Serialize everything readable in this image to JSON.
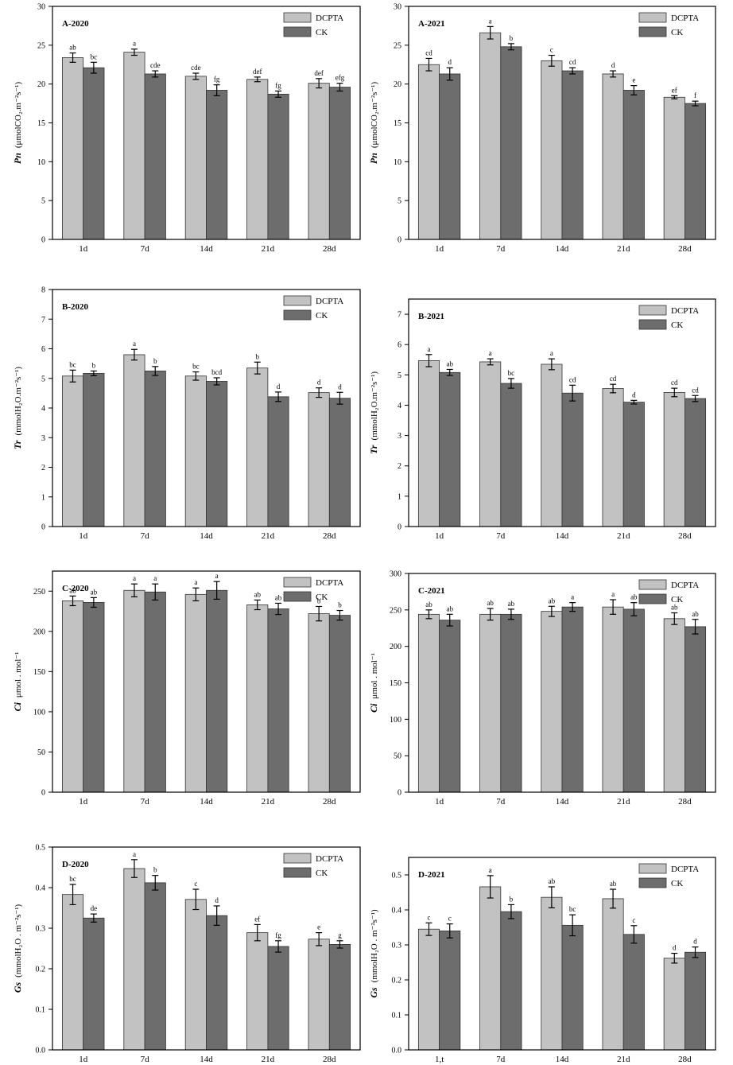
{
  "colors": {
    "dcpta": "#c2c2c2",
    "ck": "#6d6d6d",
    "axis": "#000000"
  },
  "chart_data": [
    {
      "type": "bar",
      "title": "A-2020",
      "ylabel": {
        "symbol": "Pn",
        "unit": "(μmolCO₂.m⁻²s⁻¹)"
      },
      "categories": [
        "1d",
        "7d",
        "14d",
        "21d",
        "28d"
      ],
      "ylim": [
        0,
        30
      ],
      "yticks": [
        "0",
        "5",
        "10",
        "15",
        "20",
        "25",
        "30"
      ],
      "legend": [
        "DCPTA",
        "CK"
      ],
      "legend_position": "top-right",
      "series": [
        {
          "name": "DCPTA",
          "values": [
            23.4,
            24.1,
            21.0,
            20.6,
            20.1
          ],
          "errors": [
            0.6,
            0.4,
            0.4,
            0.3,
            0.6
          ],
          "letters": [
            "ab",
            "a",
            "cde",
            "def",
            "def"
          ]
        },
        {
          "name": "CK",
          "values": [
            22.1,
            21.3,
            19.2,
            18.7,
            19.6
          ],
          "errors": [
            0.7,
            0.4,
            0.7,
            0.4,
            0.5
          ],
          "letters": [
            "bc",
            "cde",
            "fg",
            "fg",
            "efg"
          ]
        }
      ]
    },
    {
      "type": "bar",
      "title": "A-2021",
      "ylabel": {
        "symbol": "Pn",
        "unit": "(μmolCO₂.m⁻²s⁻¹)"
      },
      "categories": [
        "1d",
        "7d",
        "14d",
        "21d",
        "28d"
      ],
      "ylim": [
        0,
        30
      ],
      "yticks": [
        "0",
        "5",
        "10",
        "15",
        "20",
        "25",
        "30"
      ],
      "legend": [
        "DCPTA",
        "CK"
      ],
      "legend_position": "top-right",
      "series": [
        {
          "name": "DCPTA",
          "values": [
            22.5,
            26.6,
            23.0,
            21.3,
            18.3
          ],
          "errors": [
            0.8,
            0.8,
            0.7,
            0.4,
            0.2
          ],
          "letters": [
            "cd",
            "a",
            "c",
            "d",
            "ef"
          ]
        },
        {
          "name": "CK",
          "values": [
            21.3,
            24.8,
            21.7,
            19.2,
            17.5
          ],
          "errors": [
            0.8,
            0.4,
            0.4,
            0.6,
            0.3
          ],
          "letters": [
            "d",
            "b",
            "cd",
            "e",
            "f"
          ]
        }
      ]
    },
    {
      "type": "bar",
      "title": "B-2020",
      "ylabel": {
        "symbol": "Tr",
        "unit": "(mmolH₂O.m⁻²s⁻¹)"
      },
      "categories": [
        "1d",
        "7d",
        "14d",
        "21d",
        "28d"
      ],
      "ylim": [
        0,
        8
      ],
      "yticks": [
        "0",
        "1",
        "2",
        "3",
        "4",
        "5",
        "6",
        "7",
        "8"
      ],
      "legend": [
        "DCPTA",
        "CK"
      ],
      "legend_position": "top-right",
      "series": [
        {
          "name": "DCPTA",
          "values": [
            5.08,
            5.8,
            5.08,
            5.35,
            4.52
          ],
          "errors": [
            0.2,
            0.18,
            0.14,
            0.2,
            0.16
          ],
          "letters": [
            "bc",
            "a",
            "bc",
            "b",
            "d"
          ]
        },
        {
          "name": "CK",
          "values": [
            5.17,
            5.25,
            4.9,
            4.38,
            4.33
          ],
          "errors": [
            0.08,
            0.15,
            0.12,
            0.16,
            0.2
          ],
          "letters": [
            "b",
            "b",
            "bcd",
            "d",
            "d"
          ]
        }
      ]
    },
    {
      "type": "bar",
      "title": "B-2021",
      "ylabel": {
        "symbol": "Tr",
        "unit": "(mmolH₂O.m⁻²s⁻¹)"
      },
      "categories": [
        "1d",
        "7d",
        "14d",
        "21d",
        "28d"
      ],
      "ylim": [
        0,
        7.5
      ],
      "yticks": [
        "0",
        "1",
        "2",
        "3",
        "4",
        "5",
        "6",
        "7"
      ],
      "legend": [
        "DCPTA",
        "CK"
      ],
      "legend_position": "top-right",
      "series": [
        {
          "name": "DCPTA",
          "values": [
            5.47,
            5.43,
            5.35,
            4.55,
            4.42
          ],
          "errors": [
            0.2,
            0.1,
            0.18,
            0.14,
            0.14
          ],
          "letters": [
            "a",
            "a",
            "a",
            "cd",
            "cd"
          ]
        },
        {
          "name": "CK",
          "values": [
            5.08,
            4.72,
            4.4,
            4.1,
            4.22
          ],
          "errors": [
            0.1,
            0.16,
            0.26,
            0.06,
            0.1
          ],
          "letters": [
            "ab",
            "bc",
            "cd",
            "d",
            "cd"
          ]
        }
      ]
    },
    {
      "type": "bar",
      "title": "C-2020",
      "ylabel": {
        "symbol": "Ci",
        "unit": "μmol . mol⁻¹"
      },
      "categories": [
        "1d",
        "7d",
        "14d",
        "21d",
        "28d"
      ],
      "ylim": [
        0,
        275
      ],
      "yticks": [
        "0",
        "50",
        "100",
        "150",
        "200",
        "250"
      ],
      "legend": [
        "DCPTA",
        "CK"
      ],
      "legend_position": "top-right",
      "series": [
        {
          "name": "DCPTA",
          "values": [
            238,
            251,
            246,
            233,
            222
          ],
          "errors": [
            6,
            8,
            8,
            6,
            9
          ],
          "letters": [
            "ab",
            "a",
            "a",
            "ab",
            "b"
          ]
        },
        {
          "name": "CK",
          "values": [
            236,
            249,
            251,
            228,
            220
          ],
          "errors": [
            6,
            10,
            11,
            7,
            6
          ],
          "letters": [
            "ab",
            "a",
            "a",
            "ab",
            "b"
          ]
        }
      ]
    },
    {
      "type": "bar",
      "title": "C-2021",
      "ylabel": {
        "symbol": "Ci",
        "unit": "μmol . mol⁻¹"
      },
      "categories": [
        "1d",
        "7d",
        "14d",
        "21d",
        "28d"
      ],
      "ylim": [
        0,
        300
      ],
      "yticks": [
        "0",
        "50",
        "100",
        "150",
        "200",
        "250",
        "300"
      ],
      "legend": [
        "DCPTA",
        "CK"
      ],
      "legend_position": "top-right",
      "series": [
        {
          "name": "DCPTA",
          "values": [
            244,
            244,
            248,
            254,
            238
          ],
          "errors": [
            6,
            8,
            7,
            10,
            8
          ],
          "letters": [
            "ab",
            "ab",
            "ab",
            "a",
            "ab"
          ]
        },
        {
          "name": "CK",
          "values": [
            236,
            244,
            254,
            251,
            227
          ],
          "errors": [
            8,
            7,
            6,
            9,
            10
          ],
          "letters": [
            "ab",
            "ab",
            "a",
            "ab",
            "ab"
          ]
        }
      ]
    },
    {
      "type": "bar",
      "title": "D-2020",
      "ylabel": {
        "symbol": "Gs",
        "unit": "(mmolH₂O . m⁻²s⁻¹)"
      },
      "categories": [
        "1d",
        "7d",
        "14d",
        "21d",
        "28d"
      ],
      "ylim": [
        0,
        0.5
      ],
      "yticks": [
        "0.0",
        "0.1",
        "0.2",
        "0.3",
        "0.4",
        "0.5"
      ],
      "legend": [
        "DCPTA",
        "CK"
      ],
      "legend_position": "top-right",
      "series": [
        {
          "name": "DCPTA",
          "values": [
            0.383,
            0.447,
            0.371,
            0.289,
            0.273
          ],
          "errors": [
            0.025,
            0.022,
            0.025,
            0.02,
            0.016
          ],
          "letters": [
            "bc",
            "a",
            "c",
            "ef",
            "e"
          ]
        },
        {
          "name": "CK",
          "values": [
            0.325,
            0.412,
            0.331,
            0.255,
            0.26
          ],
          "errors": [
            0.01,
            0.018,
            0.024,
            0.014,
            0.009
          ],
          "letters": [
            "de",
            "b",
            "d",
            "fg",
            "g"
          ]
        }
      ]
    },
    {
      "type": "bar",
      "title": "D-2021",
      "ylabel": {
        "symbol": "Gs",
        "unit": "(mmolH₂O . m⁻²s⁻¹)"
      },
      "categories": [
        "1,t",
        "7d",
        "14d",
        "21d",
        "28d"
      ],
      "ylim": [
        0,
        0.55
      ],
      "yticks": [
        "0.0",
        "0.1",
        "0.2",
        "0.3",
        "0.4",
        "0.5"
      ],
      "legend": [
        "DCPTA",
        "CK"
      ],
      "legend_position": "top-right",
      "series": [
        {
          "name": "DCPTA",
          "values": [
            0.345,
            0.466,
            0.436,
            0.432,
            0.262
          ],
          "errors": [
            0.018,
            0.032,
            0.03,
            0.027,
            0.014
          ],
          "letters": [
            "c",
            "a",
            "ab",
            "ab",
            "d"
          ]
        },
        {
          "name": "CK",
          "values": [
            0.34,
            0.395,
            0.356,
            0.33,
            0.279
          ],
          "errors": [
            0.02,
            0.02,
            0.03,
            0.025,
            0.015
          ],
          "letters": [
            "c",
            "b",
            "bc",
            "c",
            "d"
          ]
        }
      ]
    }
  ]
}
